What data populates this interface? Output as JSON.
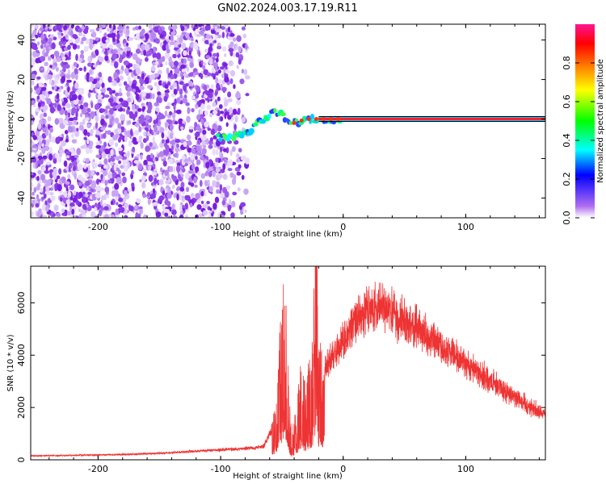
{
  "title": "GN02.2024.003.17.19.R11",
  "chart_data": [
    {
      "type": "heatmap",
      "panel": "top",
      "xlabel": "Height of straight line (km)",
      "ylabel": "Frequency (Hz)",
      "xlim": [
        -255,
        165
      ],
      "ylim": [
        -50,
        48
      ],
      "xticks": [
        -200,
        -100,
        0,
        100
      ],
      "xtick_labels": [
        "-200",
        "-100",
        "0",
        "100"
      ],
      "yticks": [
        -40,
        -20,
        0,
        20,
        40
      ],
      "ytick_labels": [
        "-40",
        "-20",
        "0",
        "20",
        "40"
      ],
      "noise_region_x": [
        -255,
        -78
      ],
      "signal_track": {
        "x": [
          -102,
          -95,
          -85,
          -78,
          -75,
          -70,
          -65,
          -60,
          -55,
          -50,
          -45,
          -40,
          -35,
          -30,
          -25,
          -20,
          -15,
          -10,
          -5,
          0,
          50,
          100,
          165
        ],
        "y": [
          -9,
          -9,
          -8,
          -7,
          -5,
          -2,
          0,
          3,
          4,
          2,
          -1,
          -2,
          -1,
          0,
          0,
          0,
          0,
          0,
          0,
          0,
          0,
          0,
          0
        ]
      },
      "colorbar": {
        "label": "Normalized spectral amplitude",
        "range": [
          0,
          1
        ],
        "ticks": [
          0.0,
          0.2,
          0.4,
          0.6,
          0.8
        ],
        "tick_labels": [
          "0.0",
          "0.2",
          "0.4",
          "0.6",
          "0.8"
        ],
        "colors": [
          "#ffffff",
          "#8a2be2",
          "#0000ff",
          "#00ffff",
          "#00ff00",
          "#ffff00",
          "#ff8000",
          "#ff0000",
          "#ff1493"
        ]
      }
    },
    {
      "type": "line",
      "panel": "bottom",
      "xlabel": "Height of straight line (km)",
      "ylabel": "SNR (10 * v/v)",
      "xlim": [
        -255,
        165
      ],
      "ylim": [
        0,
        7400
      ],
      "xticks": [
        -200,
        -100,
        0,
        100
      ],
      "xtick_labels": [
        "-200",
        "-100",
        "0",
        "100"
      ],
      "yticks": [
        0,
        2000,
        4000,
        6000
      ],
      "ytick_labels": [
        "0",
        "2000",
        "4000",
        "6000"
      ],
      "color": "#ee3333",
      "series": [
        {
          "x": [
            -255,
            -220,
            -180,
            -150,
            -120,
            -100,
            -85,
            -75,
            -65,
            -55,
            -50,
            -47,
            -45,
            -42,
            -40,
            -35,
            -30,
            -25,
            -22,
            -20,
            -15,
            -10,
            0,
            10,
            20,
            30,
            40,
            60,
            80,
            100,
            120,
            140,
            165
          ],
          "y": [
            150,
            170,
            200,
            250,
            330,
            380,
            420,
            450,
            500,
            1500,
            4500,
            5800,
            2500,
            600,
            1200,
            2500,
            2200,
            3500,
            7200,
            3000,
            3500,
            3800,
            4500,
            5300,
            5800,
            5900,
            5600,
            5000,
            4300,
            3700,
            3000,
            2400,
            1700
          ]
        }
      ]
    }
  ]
}
